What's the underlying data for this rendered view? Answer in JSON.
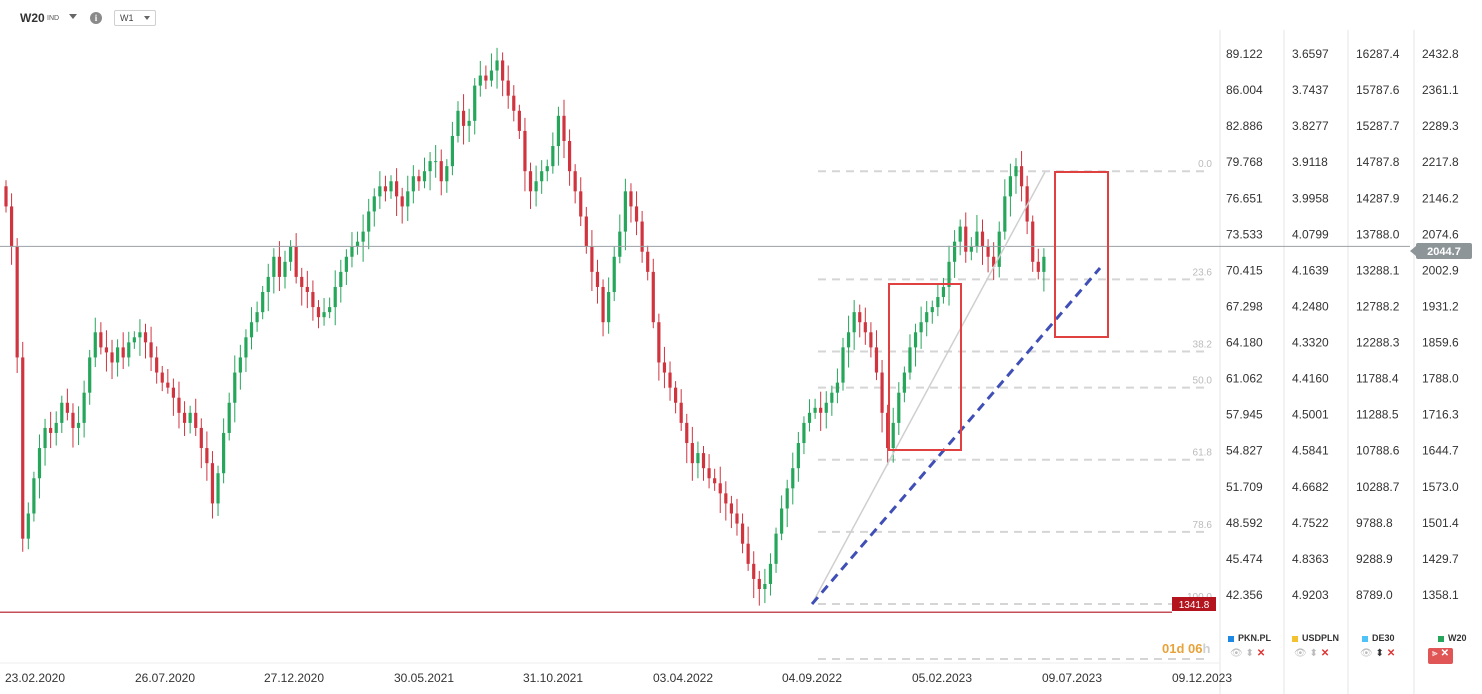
{
  "header": {
    "symbol": "W20",
    "symbol_type": "IND",
    "info_icon": "info-icon",
    "timeframe": "W1"
  },
  "scales": [
    [
      "89.122",
      "86.004",
      "82.886",
      "79.768",
      "76.651",
      "73.533",
      "70.415",
      "67.298",
      "64.180",
      "61.062",
      "57.945",
      "54.827",
      "51.709",
      "48.592",
      "45.474",
      "42.356"
    ],
    [
      "3.6597",
      "3.7437",
      "3.8277",
      "3.9118",
      "3.9958",
      "4.0799",
      "4.1639",
      "4.2480",
      "4.3320",
      "4.4160",
      "4.5001",
      "4.5841",
      "4.6682",
      "4.7522",
      "4.8363",
      "4.9203"
    ],
    [
      "16287.4",
      "15787.6",
      "15287.7",
      "14787.8",
      "14287.9",
      "13788.0",
      "13288.1",
      "12788.2",
      "12288.3",
      "11788.4",
      "11288.5",
      "10788.6",
      "10288.7",
      "9788.8",
      "9288.9",
      "8789.0"
    ],
    [
      "2432.8",
      "2361.1",
      "2289.3",
      "2217.8",
      "2146.2",
      "2074.6",
      "2002.9",
      "1931.2",
      "1859.6",
      "1788.0",
      "1716.3",
      "1644.7",
      "1573.0",
      "1501.4",
      "1429.7",
      "1358.1"
    ]
  ],
  "current_price_label": "2044.7",
  "support_price_label": "1341.8",
  "timer": {
    "value": "01d 06",
    "suffix": "h"
  },
  "legend": [
    {
      "name": "PKN.PL",
      "color": "#1e88e5"
    },
    {
      "name": "USDPLN",
      "color": "#f2c230"
    },
    {
      "name": "DE30",
      "color": "#4fc3f7"
    },
    {
      "name": "W20",
      "color": "#26a65b"
    }
  ],
  "fib_levels": [
    {
      "label": "0.0",
      "value": 2217.8
    },
    {
      "label": "23.6",
      "value": 2002.9
    },
    {
      "label": "38.2",
      "value": 1859.6
    },
    {
      "label": "50.0",
      "value": 1788.0
    },
    {
      "label": "61.8",
      "value": 1644.7
    },
    {
      "label": "78.6",
      "value": 1501.4
    },
    {
      "label": "100.0",
      "value": 1358.1
    }
  ],
  "chart_data": {
    "type": "candlestick",
    "title": "W20",
    "timeframe": "W1",
    "x_tick_labels": [
      "23.02.2020",
      "26.07.2020",
      "27.12.2020",
      "30.05.2021",
      "31.10.2021",
      "03.04.2022",
      "04.09.2022",
      "05.02.2023",
      "09.07.2023",
      "09.12.2023"
    ],
    "y_range": [
      1330,
      2450
    ],
    "current_price": 2044.7,
    "support_level": 1341.8,
    "colors": {
      "up": "#26a65b",
      "down": "#d0343f"
    },
    "anchor_dates_index": [
      0,
      22,
      44,
      66,
      88,
      110,
      132,
      154,
      176,
      198
    ],
    "closes": [
      2130,
      2050,
      1830,
      1470,
      1520,
      1590,
      1650,
      1690,
      1680,
      1700,
      1740,
      1720,
      1690,
      1700,
      1760,
      1830,
      1880,
      1850,
      1840,
      1820,
      1850,
      1830,
      1860,
      1870,
      1880,
      1860,
      1830,
      1800,
      1780,
      1770,
      1750,
      1720,
      1700,
      1720,
      1690,
      1650,
      1620,
      1540,
      1600,
      1680,
      1740,
      1800,
      1830,
      1870,
      1900,
      1920,
      1960,
      1990,
      2030,
      1990,
      2020,
      2050,
      1990,
      1970,
      1960,
      1930,
      1910,
      1920,
      1930,
      1970,
      2000,
      2030,
      2050,
      2060,
      2080,
      2120,
      2150,
      2170,
      2160,
      2180,
      2150,
      2130,
      2160,
      2190,
      2180,
      2200,
      2220,
      2220,
      2180,
      2210,
      2270,
      2320,
      2290,
      2300,
      2370,
      2390,
      2380,
      2400,
      2420,
      2380,
      2350,
      2320,
      2280,
      2200,
      2160,
      2180,
      2200,
      2210,
      2250,
      2310,
      2260,
      2200,
      2160,
      2110,
      2050,
      2000,
      1970,
      1900,
      1960,
      2030,
      2080,
      2160,
      2130,
      2100,
      2040,
      2000,
      1900,
      1820,
      1800,
      1770,
      1740,
      1700,
      1660,
      1620,
      1640,
      1610,
      1590,
      1580,
      1560,
      1540,
      1520,
      1500,
      1460,
      1420,
      1390,
      1370,
      1380,
      1420,
      1480,
      1530,
      1570,
      1610,
      1660,
      1700,
      1720,
      1730,
      1720,
      1740,
      1760,
      1780,
      1850,
      1880,
      1920,
      1900,
      1880,
      1850,
      1800,
      1720,
      1650,
      1700,
      1760,
      1800,
      1850,
      1880,
      1900,
      1920,
      1930,
      1950,
      1970,
      2020,
      2060,
      2090,
      2040,
      2050,
      2080,
      2050,
      2030,
      2010,
      2080,
      2150,
      2190,
      2210,
      2170,
      2100,
      2020,
      2000,
      2030
    ],
    "series_note": "approximate weekly closes for index W20"
  }
}
